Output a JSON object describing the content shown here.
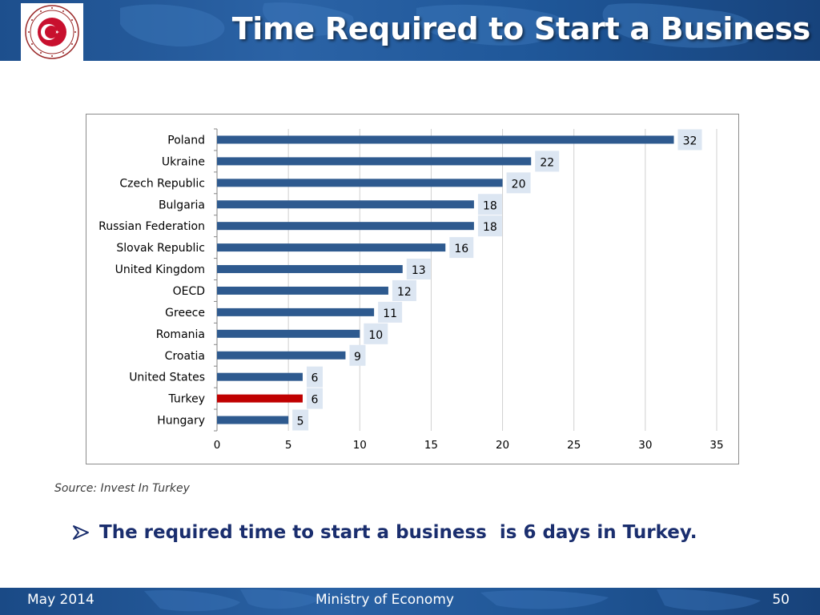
{
  "header": {
    "title": "Time Required to Start a Business",
    "logo_icon": "republic-of-turkey-ministry-of-economy-seal",
    "logo_text": "REPUBLIC OF TURKEY · MINISTRY OF ECONOMY"
  },
  "chart_data": {
    "type": "bar",
    "orientation": "horizontal",
    "title": "",
    "xlabel": "",
    "ylabel": "",
    "categories": [
      "Poland",
      "Ukraine",
      "Czech Republic",
      "Bulgaria",
      "Russian Federation",
      "Slovak Republic",
      "United Kingdom",
      "OECD",
      "Greece",
      "Romania",
      "Croatia",
      "United States",
      "Turkey",
      "Hungary"
    ],
    "values": [
      32,
      22,
      20,
      18,
      18,
      16,
      13,
      12,
      11,
      10,
      9,
      6,
      6,
      5
    ],
    "highlight_category": "Turkey",
    "xlim": [
      0,
      35
    ],
    "xticks": [
      0,
      5,
      10,
      15,
      20,
      25,
      30,
      35
    ],
    "grid": "vertical",
    "legend": "none",
    "data_labels": true,
    "colors": {
      "bar": "#2e5a8f",
      "highlight": "#c00000",
      "label_box": "#dce6f2",
      "grid": "#d0d0d0"
    }
  },
  "source": "Source: Invest In Turkey",
  "statement": {
    "text": "The required time to start a business  is 6 days in Turkey.",
    "bullet_icon": "arrow-bullet-icon"
  },
  "footer": {
    "date": "May 2014",
    "organization": "Ministry of Economy",
    "page_number": "50"
  }
}
